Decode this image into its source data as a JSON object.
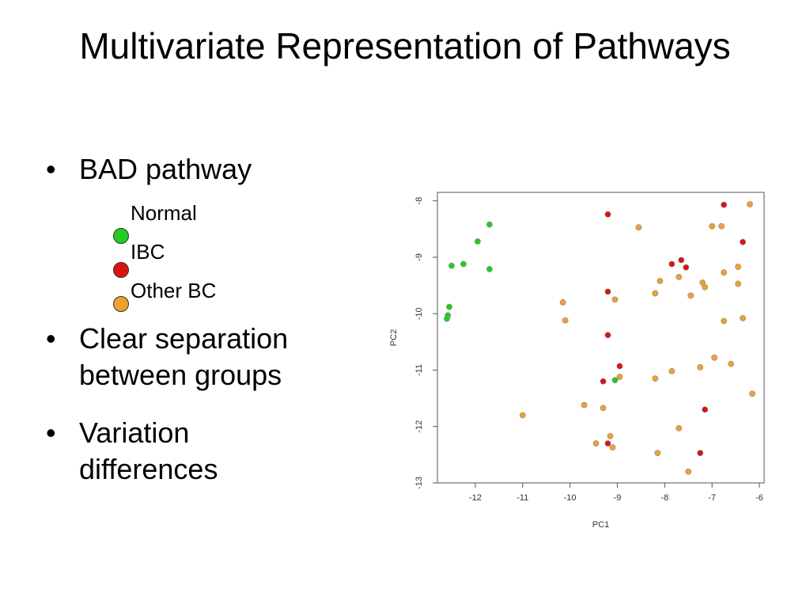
{
  "slide": {
    "title": "Multivariate Representation of Pathways",
    "bullets": [
      "BAD pathway",
      "Clear separation between groups",
      "Variation differences"
    ],
    "bullet_char": "•"
  },
  "colors": {
    "Normal": "#22cc22",
    "IBC": "#dd1111",
    "Other BC": "#f0a030",
    "point_stroke": "#888888",
    "axis": "#555555"
  },
  "chart_data": {
    "type": "scatter",
    "xlabel": "PC1",
    "ylabel": "PC2",
    "xlim": [
      -12.8,
      -5.9
    ],
    "ylim": [
      -13.0,
      -7.85
    ],
    "xticks": [
      -12,
      -11,
      -10,
      -9,
      -8,
      -7,
      -6
    ],
    "yticks": [
      -8,
      -9,
      -10,
      -11,
      -12,
      -13
    ],
    "grid": false,
    "legend_placement": "left",
    "series": [
      {
        "name": "Normal",
        "points": [
          [
            -11.7,
            -8.42
          ],
          [
            -11.95,
            -8.72
          ],
          [
            -12.25,
            -9.12
          ],
          [
            -12.5,
            -9.15
          ],
          [
            -11.7,
            -9.21
          ],
          [
            -12.55,
            -9.88
          ],
          [
            -12.58,
            -10.03
          ],
          [
            -12.6,
            -10.09
          ],
          [
            -9.05,
            -11.18
          ]
        ]
      },
      {
        "name": "IBC",
        "points": [
          [
            -6.75,
            -8.07
          ],
          [
            -9.2,
            -8.24
          ],
          [
            -6.35,
            -8.73
          ],
          [
            -7.65,
            -9.05
          ],
          [
            -7.85,
            -9.12
          ],
          [
            -7.55,
            -9.18
          ],
          [
            -9.2,
            -9.61
          ],
          [
            -9.2,
            -10.38
          ],
          [
            -8.95,
            -10.93
          ],
          [
            -9.3,
            -11.2
          ],
          [
            -7.15,
            -11.7
          ],
          [
            -9.2,
            -12.3
          ],
          [
            -7.25,
            -12.47
          ]
        ]
      },
      {
        "name": "Other BC",
        "points": [
          [
            -6.2,
            -8.06
          ],
          [
            -7.0,
            -8.45
          ],
          [
            -6.8,
            -8.45
          ],
          [
            -8.55,
            -8.47
          ],
          [
            -6.45,
            -9.17
          ],
          [
            -6.75,
            -9.27
          ],
          [
            -8.1,
            -9.42
          ],
          [
            -7.7,
            -9.35
          ],
          [
            -7.2,
            -9.45
          ],
          [
            -6.45,
            -9.47
          ],
          [
            -7.15,
            -9.53
          ],
          [
            -8.2,
            -9.64
          ],
          [
            -7.45,
            -9.68
          ],
          [
            -9.05,
            -9.75
          ],
          [
            -10.15,
            -9.8
          ],
          [
            -6.35,
            -10.08
          ],
          [
            -6.75,
            -10.13
          ],
          [
            -10.1,
            -10.12
          ],
          [
            -6.95,
            -10.78
          ],
          [
            -6.6,
            -10.89
          ],
          [
            -7.25,
            -10.95
          ],
          [
            -7.85,
            -11.02
          ],
          [
            -8.95,
            -11.12
          ],
          [
            -8.2,
            -11.15
          ],
          [
            -6.15,
            -11.42
          ],
          [
            -9.7,
            -11.62
          ],
          [
            -9.3,
            -11.67
          ],
          [
            -11.0,
            -11.8
          ],
          [
            -7.7,
            -12.03
          ],
          [
            -9.15,
            -12.17
          ],
          [
            -9.45,
            -12.3
          ],
          [
            -9.1,
            -12.37
          ],
          [
            -8.15,
            -12.47
          ],
          [
            -7.5,
            -12.8
          ]
        ]
      }
    ]
  }
}
